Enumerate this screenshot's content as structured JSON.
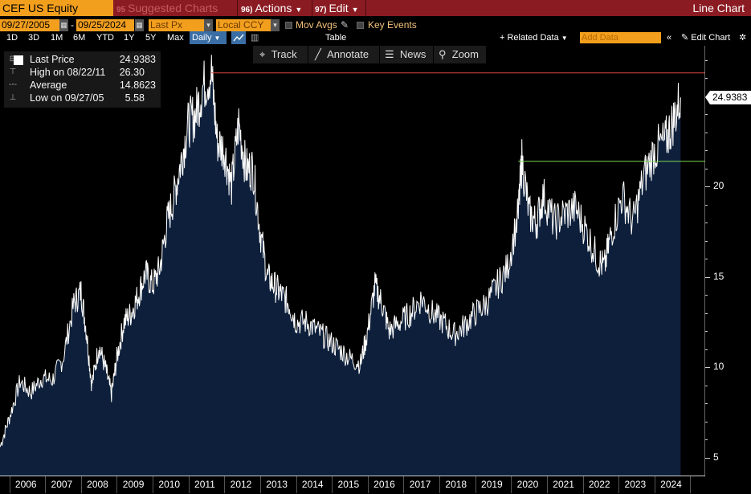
{
  "toolbar": {
    "ticker": "CEF US Equity",
    "suggested": {
      "badge": "95",
      "label": "Suggested Charts"
    },
    "actions": {
      "badge": "96)",
      "label": "Actions"
    },
    "edit": {
      "badge": "97)",
      "label": "Edit"
    },
    "chart_type": "Line Chart"
  },
  "controls": {
    "start_date": "09/27/2005",
    "dash": "-",
    "end_date": "09/25/2024",
    "field": "Last Px",
    "currency": "Local CCY",
    "mov_avgs": "Mov Avgs",
    "key_events": "Key Events"
  },
  "periods": [
    "1D",
    "3D",
    "1M",
    "6M",
    "YTD",
    "1Y",
    "5Y",
    "Max"
  ],
  "frequency": "Daily",
  "table_label": "Table",
  "related_data": "+ Related Data",
  "add_data_placeholder": "Add Data",
  "edit_chart": "Edit Chart",
  "tools": [
    "Track",
    "Annotate",
    "News",
    "Zoom"
  ],
  "legend": {
    "last": {
      "label": "Last Price",
      "value": "24.9383"
    },
    "high": {
      "label": "High on 08/22/11",
      "value": "26.30"
    },
    "avg": {
      "label": "Average",
      "value": "14.8623"
    },
    "low": {
      "label": "Low on 09/27/05",
      "value": "5.58"
    }
  },
  "last_value_label": "24.9383",
  "colors": {
    "accent": "#f39f1e",
    "topbar": "#8b1b22",
    "area": "#0d1f3a",
    "line": "#ffffff",
    "high_line": "#e0483f",
    "ref_line": "#7ed957"
  },
  "chart_data": {
    "type": "area",
    "x": [
      2005.74,
      2006.0,
      2006.3,
      2006.6,
      2006.9,
      2007.2,
      2007.5,
      2007.8,
      2008.0,
      2008.15,
      2008.3,
      2008.5,
      2008.7,
      2008.85,
      2009.0,
      2009.2,
      2009.4,
      2009.6,
      2009.8,
      2010.0,
      2010.2,
      2010.4,
      2010.6,
      2010.8,
      2011.0,
      2011.2,
      2011.4,
      2011.64,
      2011.8,
      2012.0,
      2012.2,
      2012.4,
      2012.6,
      2012.8,
      2013.0,
      2013.2,
      2013.4,
      2013.6,
      2013.8,
      2014.0,
      2014.3,
      2014.6,
      2014.9,
      2015.2,
      2015.5,
      2015.8,
      2016.0,
      2016.2,
      2016.4,
      2016.6,
      2016.9,
      2017.2,
      2017.5,
      2017.8,
      2018.1,
      2018.4,
      2018.7,
      2019.0,
      2019.3,
      2019.6,
      2019.9,
      2020.2,
      2020.3,
      2020.5,
      2020.7,
      2020.9,
      2021.2,
      2021.5,
      2021.8,
      2022.1,
      2022.4,
      2022.6,
      2022.8,
      2023.1,
      2023.4,
      2023.7,
      2024.0,
      2024.3,
      2024.5,
      2024.73
    ],
    "values": [
      5.58,
      7.2,
      9.2,
      8.6,
      9.4,
      9.3,
      10.5,
      13.5,
      14.2,
      12.0,
      9.0,
      11.2,
      9.8,
      8.5,
      10.5,
      12.5,
      13.0,
      14.0,
      15.2,
      14.5,
      15.5,
      18.0,
      19.5,
      21.5,
      23.5,
      24.0,
      25.5,
      26.3,
      22.5,
      22.0,
      20.0,
      23.5,
      21.0,
      21.0,
      17.5,
      15.0,
      14.5,
      14.0,
      13.5,
      12.5,
      12.5,
      12.0,
      11.5,
      11.0,
      10.5,
      10.2,
      12.0,
      14.5,
      13.5,
      12.0,
      12.5,
      13.0,
      13.8,
      13.0,
      12.5,
      11.8,
      12.3,
      13.0,
      13.5,
      14.5,
      15.5,
      18.5,
      21.5,
      18.5,
      18.0,
      19.5,
      18.0,
      18.5,
      18.8,
      17.5,
      16.0,
      15.5,
      17.5,
      19.5,
      18.0,
      20.5,
      22.0,
      22.5,
      23.5,
      24.9383
    ],
    "ylim": [
      4.0,
      27.8
    ],
    "xlim": [
      2005.74,
      2024.9
    ],
    "yticks": [
      5,
      10,
      15,
      20
    ],
    "xticks": [
      "2006",
      "2007",
      "2008",
      "2009",
      "2010",
      "2011",
      "2012",
      "2013",
      "2014",
      "2015",
      "2016",
      "2017",
      "2018",
      "2019",
      "2020",
      "2021",
      "2022",
      "2023",
      "2024"
    ],
    "high_line": 26.3,
    "ref_line": 21.4,
    "ref_line_start": 2020.2,
    "grid": false,
    "legend_position": "top-left"
  }
}
